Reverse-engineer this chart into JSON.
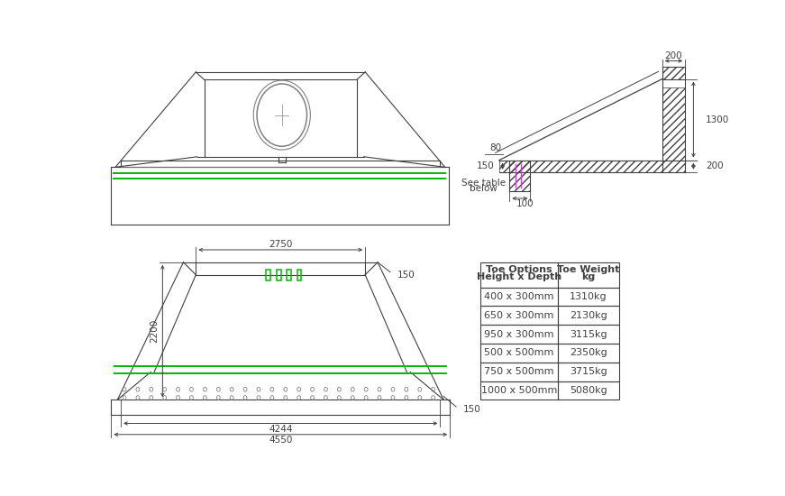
{
  "bg_color": "#ffffff",
  "line_color": "#404040",
  "line_color_light": "#808080",
  "green_color": "#00bb00",
  "magenta_color": "#cc44cc",
  "table_data": {
    "rows": [
      [
        "400 x 300mm",
        "1310kg"
      ],
      [
        "650 x 300mm",
        "2130kg"
      ],
      [
        "950 x 300mm",
        "3115kg"
      ],
      [
        "500 x 500mm",
        "2350kg"
      ],
      [
        "750 x 500mm",
        "3715kg"
      ],
      [
        "1000 x 500mm",
        "5080kg"
      ]
    ]
  },
  "fs": 7.5,
  "fm": 8.0
}
